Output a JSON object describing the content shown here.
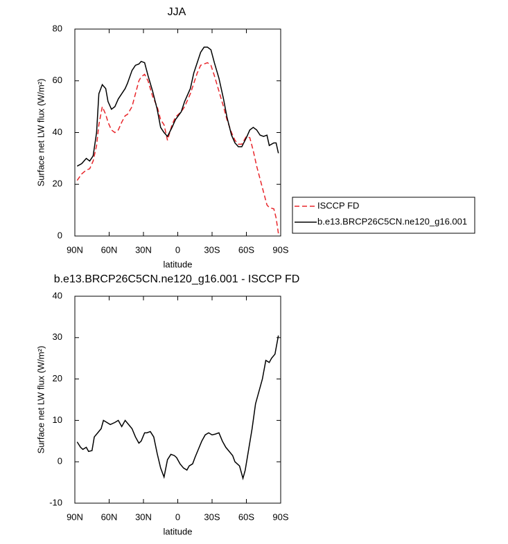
{
  "chart_data": [
    {
      "type": "line",
      "title": "JJA",
      "x_label": "latitude",
      "y_label": "Surface net LW flux (W/m²)",
      "x": [
        88,
        84,
        80,
        77,
        74,
        71,
        69,
        66,
        63,
        61,
        58,
        55,
        52,
        49,
        46,
        44,
        40,
        37,
        34,
        32,
        29,
        26,
        22,
        18,
        15,
        12,
        9,
        5,
        2,
        -3,
        -6,
        -11,
        -14,
        -17,
        -20,
        -23,
        -26,
        -29,
        -32,
        -36,
        -40,
        -43,
        -47,
        -50,
        -53,
        -56,
        -60,
        -63,
        -66,
        -69,
        -72,
        -75,
        -78,
        -80,
        -84,
        -86,
        -88
      ],
      "series": [
        {
          "name": "ISCCP FD",
          "color": "#e8252a",
          "style": "dashed",
          "values": [
            21.5,
            24,
            25.5,
            26,
            29,
            35,
            43,
            50,
            47,
            44,
            41,
            40,
            41,
            44,
            46.5,
            47,
            50,
            55,
            60,
            61.5,
            62.5,
            60,
            54,
            50,
            45,
            43,
            37,
            43,
            46,
            48,
            50,
            55,
            59,
            63,
            66,
            66.5,
            67,
            66,
            62,
            56,
            50,
            45,
            40,
            37,
            35.5,
            35.5,
            38.5,
            38,
            33,
            27,
            22,
            17,
            12,
            11,
            10.5,
            7,
            1
          ]
        },
        {
          "name": "b.e13.BRCP26C5CN.ne120_g16.001",
          "color": "#000000",
          "style": "solid",
          "values": [
            27,
            28,
            30,
            29,
            31,
            40,
            55,
            58.5,
            57,
            52,
            49,
            50,
            53,
            55,
            57,
            59,
            64,
            66,
            66.5,
            67.5,
            67,
            62,
            56,
            49,
            42,
            40,
            38.5,
            42,
            45,
            48,
            52,
            57,
            63,
            67,
            71,
            73,
            73,
            72,
            67,
            61,
            53,
            46,
            39,
            36,
            34.5,
            34.5,
            38,
            41,
            42,
            41,
            39,
            38.5,
            39,
            35,
            36,
            36,
            32
          ]
        }
      ],
      "xlim": [
        90,
        -90
      ],
      "xticks": [
        {
          "value": 90,
          "label": "90N"
        },
        {
          "value": 60,
          "label": "60N"
        },
        {
          "value": 30,
          "label": "30N"
        },
        0,
        {
          "value": -30,
          "label": "30S"
        },
        {
          "value": -60,
          "label": "60S"
        },
        {
          "value": -90,
          "label": "90S"
        }
      ],
      "ylim": [
        0,
        80
      ],
      "yticks": [
        0,
        20,
        40,
        60,
        80
      ],
      "legend": "right"
    },
    {
      "type": "line",
      "title": "b.e13.BRCP26C5CN.ne120_g16.001 - ISCCP FD",
      "x_label": "latitude",
      "y_label": "Surface net LW flux (W/m²)",
      "x": [
        88,
        85,
        83,
        80,
        78,
        75,
        73,
        70,
        67,
        65,
        62,
        59,
        55,
        52,
        49,
        46,
        43,
        40,
        37,
        34,
        32,
        29,
        27,
        24,
        21,
        18,
        15,
        12,
        9,
        6,
        3,
        1,
        -2,
        -5,
        -8,
        -10,
        -13,
        -15,
        -18,
        -21,
        -24,
        -27,
        -30,
        -33,
        -36,
        -39,
        -42,
        -45,
        -48,
        -50,
        -54,
        -57,
        -59,
        -62,
        -65,
        -68,
        -71,
        -74,
        -77,
        -80,
        -82,
        -85,
        -88
      ],
      "values": [
        4.8,
        3.5,
        3,
        3.5,
        2.5,
        2.7,
        6,
        7,
        8,
        10,
        9.5,
        9,
        9.5,
        10,
        8.5,
        10,
        9,
        8,
        6,
        4.5,
        5,
        7,
        7,
        7.3,
        6,
        2,
        -1.5,
        -3.7,
        0.5,
        1.8,
        1.5,
        1,
        -0.5,
        -1.5,
        -2,
        -1,
        -0.5,
        1,
        3,
        5,
        6.5,
        7,
        6.5,
        6.7,
        7,
        5,
        3.5,
        2.5,
        1.5,
        0,
        -1,
        -4,
        -2,
        3,
        8,
        14,
        17,
        20,
        24.5,
        24,
        25,
        26,
        30.5
      ],
      "color": "#000000",
      "xlim": [
        90,
        -90
      ],
      "xticks": [
        {
          "value": 90,
          "label": "90N"
        },
        {
          "value": 60,
          "label": "60N"
        },
        {
          "value": 30,
          "label": "30N"
        },
        0,
        {
          "value": -30,
          "label": "30S"
        },
        {
          "value": -60,
          "label": "60S"
        },
        {
          "value": -90,
          "label": "90S"
        }
      ],
      "ylim": [
        -10,
        40
      ],
      "yticks": [
        -10,
        0,
        10,
        20,
        30,
        40
      ]
    }
  ]
}
